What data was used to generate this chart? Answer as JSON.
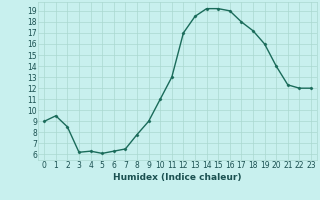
{
  "xlabel": "Humidex (Indice chaleur)",
  "x": [
    0,
    1,
    2,
    3,
    4,
    5,
    6,
    7,
    8,
    9,
    10,
    11,
    12,
    13,
    14,
    15,
    16,
    17,
    18,
    19,
    20,
    21,
    22,
    23
  ],
  "y": [
    9,
    9.5,
    8.5,
    6.2,
    6.3,
    6.1,
    6.3,
    6.5,
    7.8,
    9.0,
    11.0,
    13.0,
    17.0,
    18.5,
    19.2,
    19.2,
    19.0,
    18.0,
    17.2,
    16.0,
    14.0,
    12.3,
    12.0,
    12.0
  ],
  "line_color": "#1a6b5a",
  "marker": "D",
  "marker_size": 1.5,
  "bg_color": "#c8f0ee",
  "grid_color": "#aad8d0",
  "ylim": [
    5.5,
    19.8
  ],
  "yticks": [
    6,
    7,
    8,
    9,
    10,
    11,
    12,
    13,
    14,
    15,
    16,
    17,
    18,
    19
  ],
  "xticks": [
    0,
    1,
    2,
    3,
    4,
    5,
    6,
    7,
    8,
    9,
    10,
    11,
    12,
    13,
    14,
    15,
    16,
    17,
    18,
    19,
    20,
    21,
    22,
    23
  ],
  "font_color": "#1a5050",
  "xlabel_fontsize": 6.5,
  "tick_fontsize": 5.5,
  "linewidth": 1.0
}
